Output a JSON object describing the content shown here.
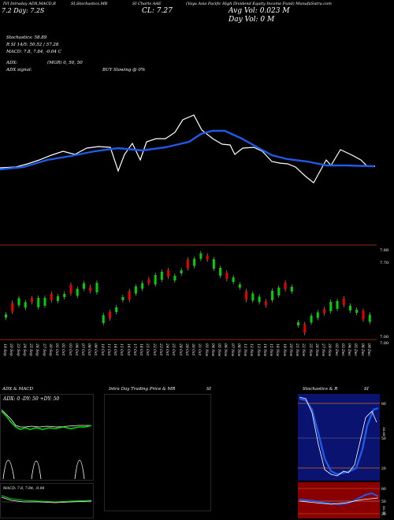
{
  "header": {
    "symbol_line": "(Vaya Asia Pacific High Dividend Equity Income Fund) MunafaSutra.com",
    "indicator_line": "IVI Intraday ADX,MACD,R",
    "stoch_label": "SI,Stochastics,MR",
    "ma_label": "SI Charts AAE",
    "price_left": "7.2  Day: 7.2S",
    "close_label": "CL: 7.27",
    "avg_vol": "Avg Vol: 0.023 M",
    "day_vol": "Day Vol: 0  M"
  },
  "info": {
    "stochastics": "Stochastics: 58.89",
    "stoch_detail": "R          SI 14/5: 50.52 / 57.28",
    "macd": "MACD: 7.8, 7.84, -0.04  C",
    "adx": "ADX:",
    "adx_vals": "(MGR) 0, 50, 50",
    "adx_signal": "ADX signal:",
    "buy_signal": "BUY Slowing @ 0%"
  },
  "price_axis": {
    "labels": [
      "7.88",
      "7.70",
      "7.00",
      "7.00"
    ]
  },
  "dates": [
    "19 Sep",
    "20 Sep",
    "23 Sep",
    "24 Sep",
    "25 Sep",
    "26 Sep",
    "27 Sep",
    "30 Sep",
    "01 Oct",
    "02 Oct",
    "03 Oct",
    "04 Oct",
    "07 Oct",
    "08 Oct",
    "09 Oct",
    "10 Oct",
    "11 Oct",
    "14 Oct",
    "15 Oct",
    "16 Oct",
    "17 Oct",
    "18 Oct",
    "21 Oct",
    "22 Oct",
    "23 Oct",
    "24 Oct",
    "25 Oct",
    "28 Oct",
    "29 Oct",
    "30 Oct",
    "31 Oct",
    "01 Nov",
    "04 Nov",
    "05 Nov",
    "06 Nov",
    "07 Nov",
    "08 Nov",
    "11 Nov",
    "12 Nov",
    "13 Nov",
    "14 Nov",
    "15 Nov",
    "18 Nov",
    "19 Nov",
    "20 Nov",
    "21 Nov",
    "22 Nov",
    "25 Nov",
    "26 Nov",
    "27 Nov",
    "29 Nov",
    "02 Dec",
    "03 Dec",
    "04 Dec",
    "05 Dec",
    "06 Dec",
    "09 Dec"
  ],
  "panels": {
    "adx_title": "ADX  & MACD",
    "adx_inner": "ADX: 0  -DY: 50  +DY: 50",
    "intra_title": "Intra  Day Trading Price  & MR",
    "intra_si": "SI",
    "stoch_title": "Stochastics & R",
    "stoch_si": "SI",
    "macd_inner": "MACD: 7.8, 7.84, -0.04",
    "stoch_axis": [
      "80",
      "50",
      "20"
    ],
    "rsi_axis": [
      "80",
      "50",
      "20"
    ],
    "stoch_side": "58.89",
    "rsi_side": "50.52"
  },
  "colors": {
    "background": "#000000",
    "ma_line": "#1f5ae8",
    "up_candle": "#00d200",
    "down_candle": "#e60000",
    "stoch_bg": "#0a1470",
    "rsi_bg": "#8a0000",
    "orange_line": "#d2691e"
  }
}
